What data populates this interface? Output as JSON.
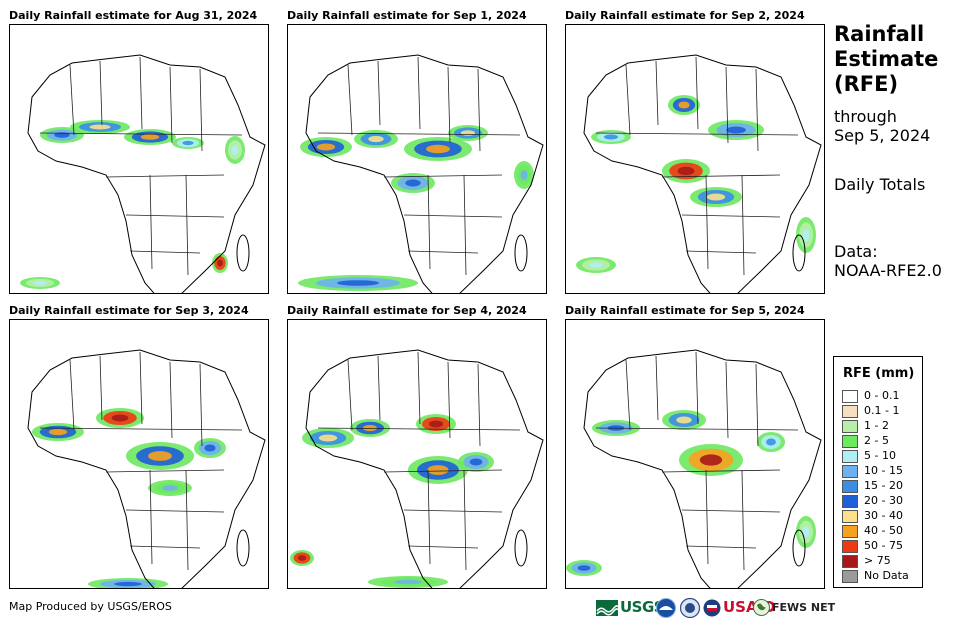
{
  "panels": [
    {
      "title": "Daily Rainfall estimate for Aug 31, 2024"
    },
    {
      "title": "Daily Rainfall estimate for Sep 1, 2024"
    },
    {
      "title": "Daily Rainfall estimate for Sep 2, 2024"
    },
    {
      "title": "Daily Rainfall estimate for Sep 3, 2024"
    },
    {
      "title": "Daily Rainfall estimate for Sep 4, 2024"
    },
    {
      "title": "Daily Rainfall estimate for Sep 5, 2024"
    }
  ],
  "sidebar": {
    "title_line1": "Rainfall",
    "title_line2": "Estimate",
    "title_line3": "(RFE)",
    "through_label": "through",
    "through_date": "Sep 5, 2024",
    "period": "Daily Totals",
    "data_label": "Data:",
    "data_source": "NOAA-RFE2.0"
  },
  "legend": {
    "title": "RFE (mm)",
    "items": [
      {
        "label": "0 - 0.1",
        "color": "#ffffff"
      },
      {
        "label": "0.1 - 1",
        "color": "#f5dfc0"
      },
      {
        "label": "1 - 2",
        "color": "#b8efa8"
      },
      {
        "label": "2 - 5",
        "color": "#6ee860"
      },
      {
        "label": "5 - 10",
        "color": "#aeeef5"
      },
      {
        "label": "10 - 15",
        "color": "#6fb0ee"
      },
      {
        "label": "15 - 20",
        "color": "#3b8ee8"
      },
      {
        "label": "20 - 30",
        "color": "#1f5fd8"
      },
      {
        "label": "30 - 40",
        "color": "#fbe08a"
      },
      {
        "label": "40 - 50",
        "color": "#f7a21e"
      },
      {
        "label": "50 - 75",
        "color": "#ee3a12"
      },
      {
        "label": "> 75",
        "color": "#a8181a"
      },
      {
        "label": "No Data",
        "color": "#9a9a9a"
      }
    ]
  },
  "footer": {
    "credit": "Map Produced by USGS/EROS",
    "logos": {
      "usgs": "USGS",
      "usaid": "USAID",
      "fews": "FEWS NET"
    }
  }
}
